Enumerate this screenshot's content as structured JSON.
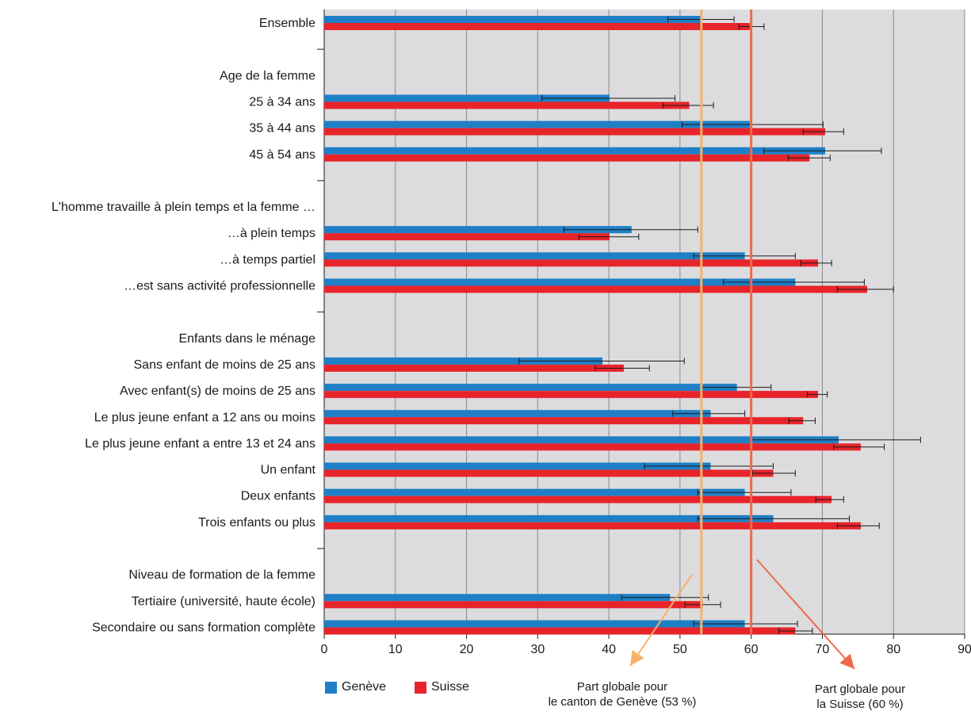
{
  "chart_data": {
    "type": "bar",
    "orientation": "horizontal",
    "xlim": [
      0,
      90
    ],
    "xticks": [
      "0",
      "10",
      "20",
      "30",
      "40",
      "50",
      "60",
      "70",
      "80",
      "90"
    ],
    "grid": true,
    "legend_position": "bottom-left",
    "colors": {
      "geneve": "#1f7fc6",
      "suisse": "#e8242b",
      "plot_bg": "#dcdcde",
      "ref_geneve": "#f6b26b",
      "ref_suisse": "#ee6a4c"
    },
    "series": [
      {
        "name": "Genève",
        "key": "geneve"
      },
      {
        "name": "Suisse",
        "key": "suisse"
      }
    ],
    "categories": [
      {
        "label": "Ensemble",
        "geneve": 53,
        "geneve_ci": [
          48.3,
          57.6
        ],
        "suisse": 59.8,
        "suisse_ci": [
          58.3,
          61.8
        ]
      },
      {
        "label": "",
        "separator": true
      },
      {
        "label": "Age de la femme",
        "header": true
      },
      {
        "label": "25 à 34 ans",
        "geneve": 40.1,
        "geneve_ci": [
          30.6,
          49.3
        ],
        "suisse": 51.3,
        "suisse_ci": [
          47.6,
          54.7
        ]
      },
      {
        "label": "35 à 44 ans",
        "geneve": 59.8,
        "geneve_ci": [
          50.3,
          70.1
        ],
        "suisse": 70.4,
        "suisse_ci": [
          67.3,
          73.0
        ]
      },
      {
        "label": "45 à 54 ans",
        "geneve": 70.4,
        "geneve_ci": [
          61.8,
          78.3
        ],
        "suisse": 68.2,
        "suisse_ci": [
          65.2,
          71.1
        ]
      },
      {
        "label": "",
        "separator": true
      },
      {
        "label": "L'homme travaille à plein temps et la femme …",
        "header": true
      },
      {
        "label": "…à plein temps",
        "geneve": 43.2,
        "geneve_ci": [
          33.7,
          52.5
        ],
        "suisse": 40.1,
        "suisse_ci": [
          35.8,
          44.2
        ]
      },
      {
        "label": "…à temps partiel",
        "geneve": 59.1,
        "geneve_ci": [
          51.9,
          66.2
        ],
        "suisse": 69.4,
        "suisse_ci": [
          67.0,
          71.3
        ]
      },
      {
        "label": "…est sans activité professionnelle",
        "geneve": 66.2,
        "geneve_ci": [
          56.1,
          75.9
        ],
        "suisse": 76.3,
        "suisse_ci": [
          72.1,
          80.0
        ]
      },
      {
        "label": "",
        "separator": true
      },
      {
        "label": "Enfants dans le ménage",
        "header": true
      },
      {
        "label": "Sans enfant de moins de 25 ans",
        "geneve": 39.1,
        "geneve_ci": [
          27.4,
          50.6
        ],
        "suisse": 42.1,
        "suisse_ci": [
          38.1,
          45.7
        ]
      },
      {
        "label": "Avec enfant(s) de moins de 25 ans",
        "geneve": 58.0,
        "geneve_ci": [
          53.0,
          62.8
        ],
        "suisse": 69.4,
        "suisse_ci": [
          67.9,
          70.7
        ]
      },
      {
        "label": "Le plus jeune enfant a 12 ans ou moins",
        "geneve": 54.3,
        "geneve_ci": [
          49.0,
          59.1
        ],
        "suisse": 67.3,
        "suisse_ci": [
          65.3,
          69.0
        ]
      },
      {
        "label": "Le plus jeune enfant a entre 13 et 24 ans",
        "geneve": 72.3,
        "geneve_ci": [
          60.0,
          83.8
        ],
        "suisse": 75.4,
        "suisse_ci": [
          71.6,
          78.7
        ]
      },
      {
        "label": "Un enfant",
        "geneve": 54.3,
        "geneve_ci": [
          45.0,
          63.1
        ],
        "suisse": 63.1,
        "suisse_ci": [
          60.2,
          66.2
        ]
      },
      {
        "label": "Deux enfants",
        "geneve": 59.1,
        "geneve_ci": [
          52.5,
          65.6
        ],
        "suisse": 71.3,
        "suisse_ci": [
          69.1,
          73.0
        ]
      },
      {
        "label": "Trois enfants ou plus",
        "geneve": 63.1,
        "geneve_ci": [
          52.5,
          73.8
        ],
        "suisse": 75.4,
        "suisse_ci": [
          72.1,
          78.0
        ]
      },
      {
        "label": "",
        "separator": true
      },
      {
        "label": "Niveau de formation de la femme",
        "header": true
      },
      {
        "label": "Tertiaire (université, haute école)",
        "geneve": 48.6,
        "geneve_ci": [
          41.8,
          54.0
        ],
        "suisse": 53.2,
        "suisse_ci": [
          50.7,
          55.7
        ]
      },
      {
        "label": "Secondaire ou sans formation complète",
        "geneve": 59.1,
        "geneve_ci": [
          51.9,
          66.5
        ],
        "suisse": 66.2,
        "suisse_ci": [
          63.9,
          68.6
        ]
      }
    ],
    "reference_lines": [
      {
        "value": 53,
        "color": "#f6b26b",
        "label_lines": [
          "Part globale pour",
          "le canton de Genève (53 %)"
        ]
      },
      {
        "value": 60,
        "color": "#ee6a4c",
        "label_lines": [
          "Part globale pour",
          "la Suisse (60 %)"
        ]
      }
    ]
  }
}
